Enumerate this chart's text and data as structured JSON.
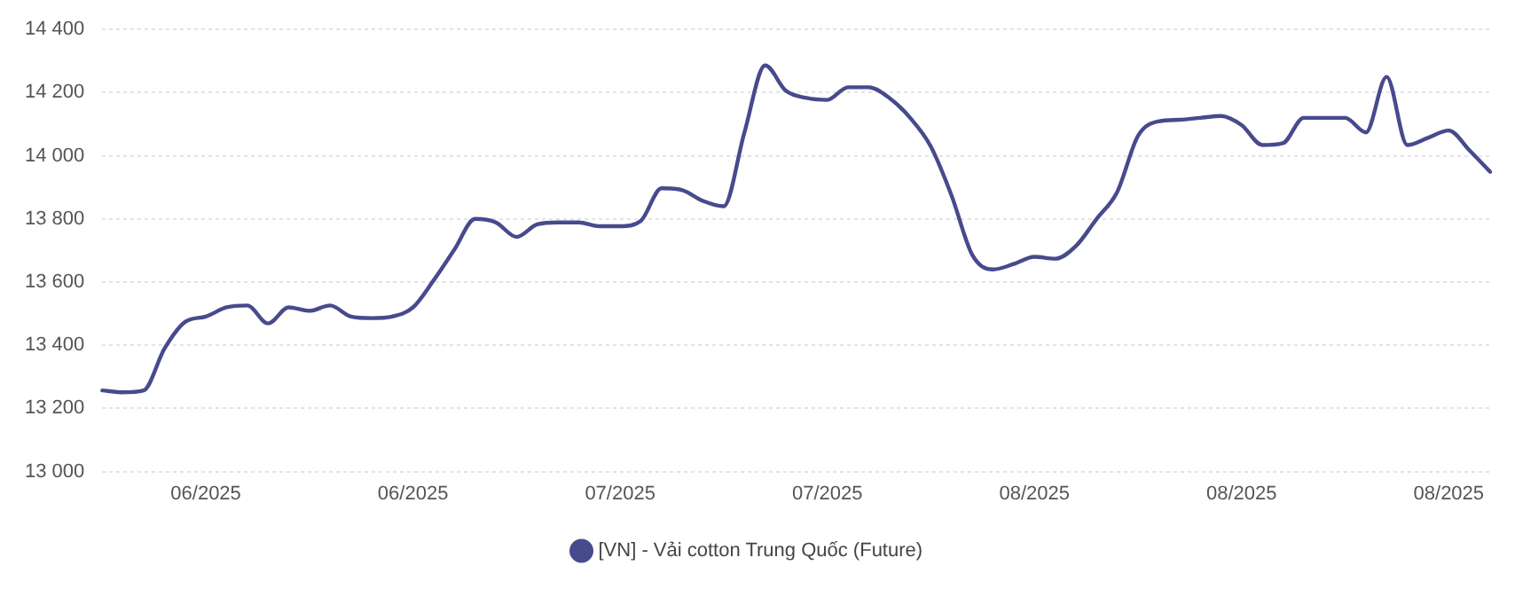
{
  "chart_data": {
    "type": "line",
    "categories": [
      null,
      null,
      null,
      null,
      null,
      "06/2025",
      null,
      null,
      null,
      null,
      null,
      null,
      null,
      null,
      null,
      "06/2025",
      null,
      null,
      null,
      null,
      null,
      null,
      null,
      null,
      null,
      "07/2025",
      null,
      null,
      null,
      null,
      null,
      null,
      null,
      null,
      null,
      "07/2025",
      null,
      null,
      null,
      null,
      null,
      null,
      null,
      null,
      null,
      "08/2025",
      null,
      null,
      null,
      null,
      null,
      null,
      null,
      null,
      null,
      "08/2025",
      null,
      null,
      null,
      null,
      null,
      null,
      null,
      null,
      null,
      "08/2025",
      null,
      null
    ],
    "series": [
      {
        "name": "[VN] - Vải cotton Trung Quốc (Future)",
        "color": "#474a8c",
        "values": [
          13257,
          13251,
          13257,
          13389,
          13474,
          13491,
          13520,
          13526,
          13469,
          13520,
          13509,
          13526,
          13491,
          13486,
          13491,
          13520,
          13606,
          13703,
          13800,
          13789,
          13743,
          13783,
          13789,
          13789,
          13777,
          13777,
          13794,
          13897,
          13891,
          13857,
          13840,
          14074,
          14286,
          14206,
          14183,
          14177,
          14217,
          14217,
          14183,
          14120,
          14029,
          13874,
          13686,
          13640,
          13657,
          13680,
          13674,
          13714,
          13800,
          13886,
          14063,
          14109,
          14114,
          14120,
          14126,
          14097,
          14034,
          14040,
          14120,
          14120,
          14120,
          14074,
          14250,
          14034,
          14057,
          14080,
          14017,
          13949
        ]
      }
    ],
    "ylim": [
      13000,
      14400
    ],
    "yticks": [
      {
        "value": 13000,
        "label": "13 000"
      },
      {
        "value": 13200,
        "label": "13 200"
      },
      {
        "value": 13400,
        "label": "13 400"
      },
      {
        "value": 13600,
        "label": "13 600"
      },
      {
        "value": 13800,
        "label": "13 800"
      },
      {
        "value": 14000,
        "label": "14 000"
      },
      {
        "value": 14200,
        "label": "14 200"
      },
      {
        "value": 14400,
        "label": "14 400"
      }
    ],
    "grid": "y",
    "legend": "bottom",
    "marker": "none",
    "line_style": "solid"
  }
}
